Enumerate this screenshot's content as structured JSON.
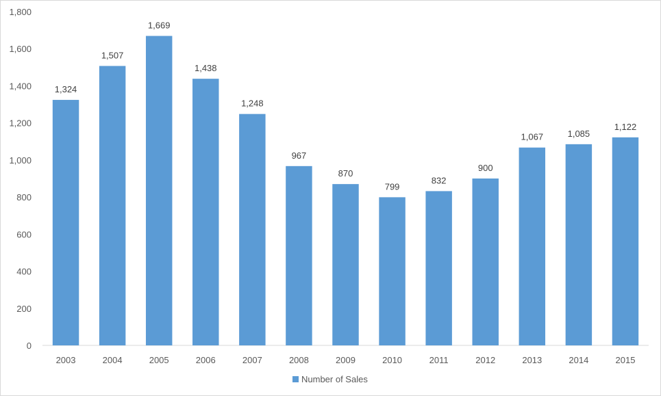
{
  "chart_data": {
    "type": "bar",
    "categories": [
      "2003",
      "2004",
      "2005",
      "2006",
      "2007",
      "2008",
      "2009",
      "2010",
      "2011",
      "2012",
      "2013",
      "2014",
      "2015"
    ],
    "series": [
      {
        "name": "Number of Sales",
        "color": "#5B9BD5",
        "values": [
          1324,
          1507,
          1669,
          1438,
          1248,
          967,
          870,
          799,
          832,
          900,
          1067,
          1085,
          1122
        ],
        "labels": [
          "1,324",
          "1,507",
          "1,669",
          "1,438",
          "1,248",
          "967",
          "870",
          "799",
          "832",
          "900",
          "1,067",
          "1,085",
          "1,122"
        ]
      }
    ],
    "ylim": [
      0,
      1800
    ],
    "yticks": [
      0,
      200,
      400,
      600,
      800,
      1000,
      1200,
      1400,
      1600,
      1800
    ],
    "ytick_labels": [
      "0",
      "200",
      "400",
      "600",
      "800",
      "1,000",
      "1,200",
      "1,400",
      "1,600",
      "1,800"
    ],
    "grid": false,
    "legend_position": "bottom",
    "title": "",
    "xlabel": "",
    "ylabel": ""
  }
}
